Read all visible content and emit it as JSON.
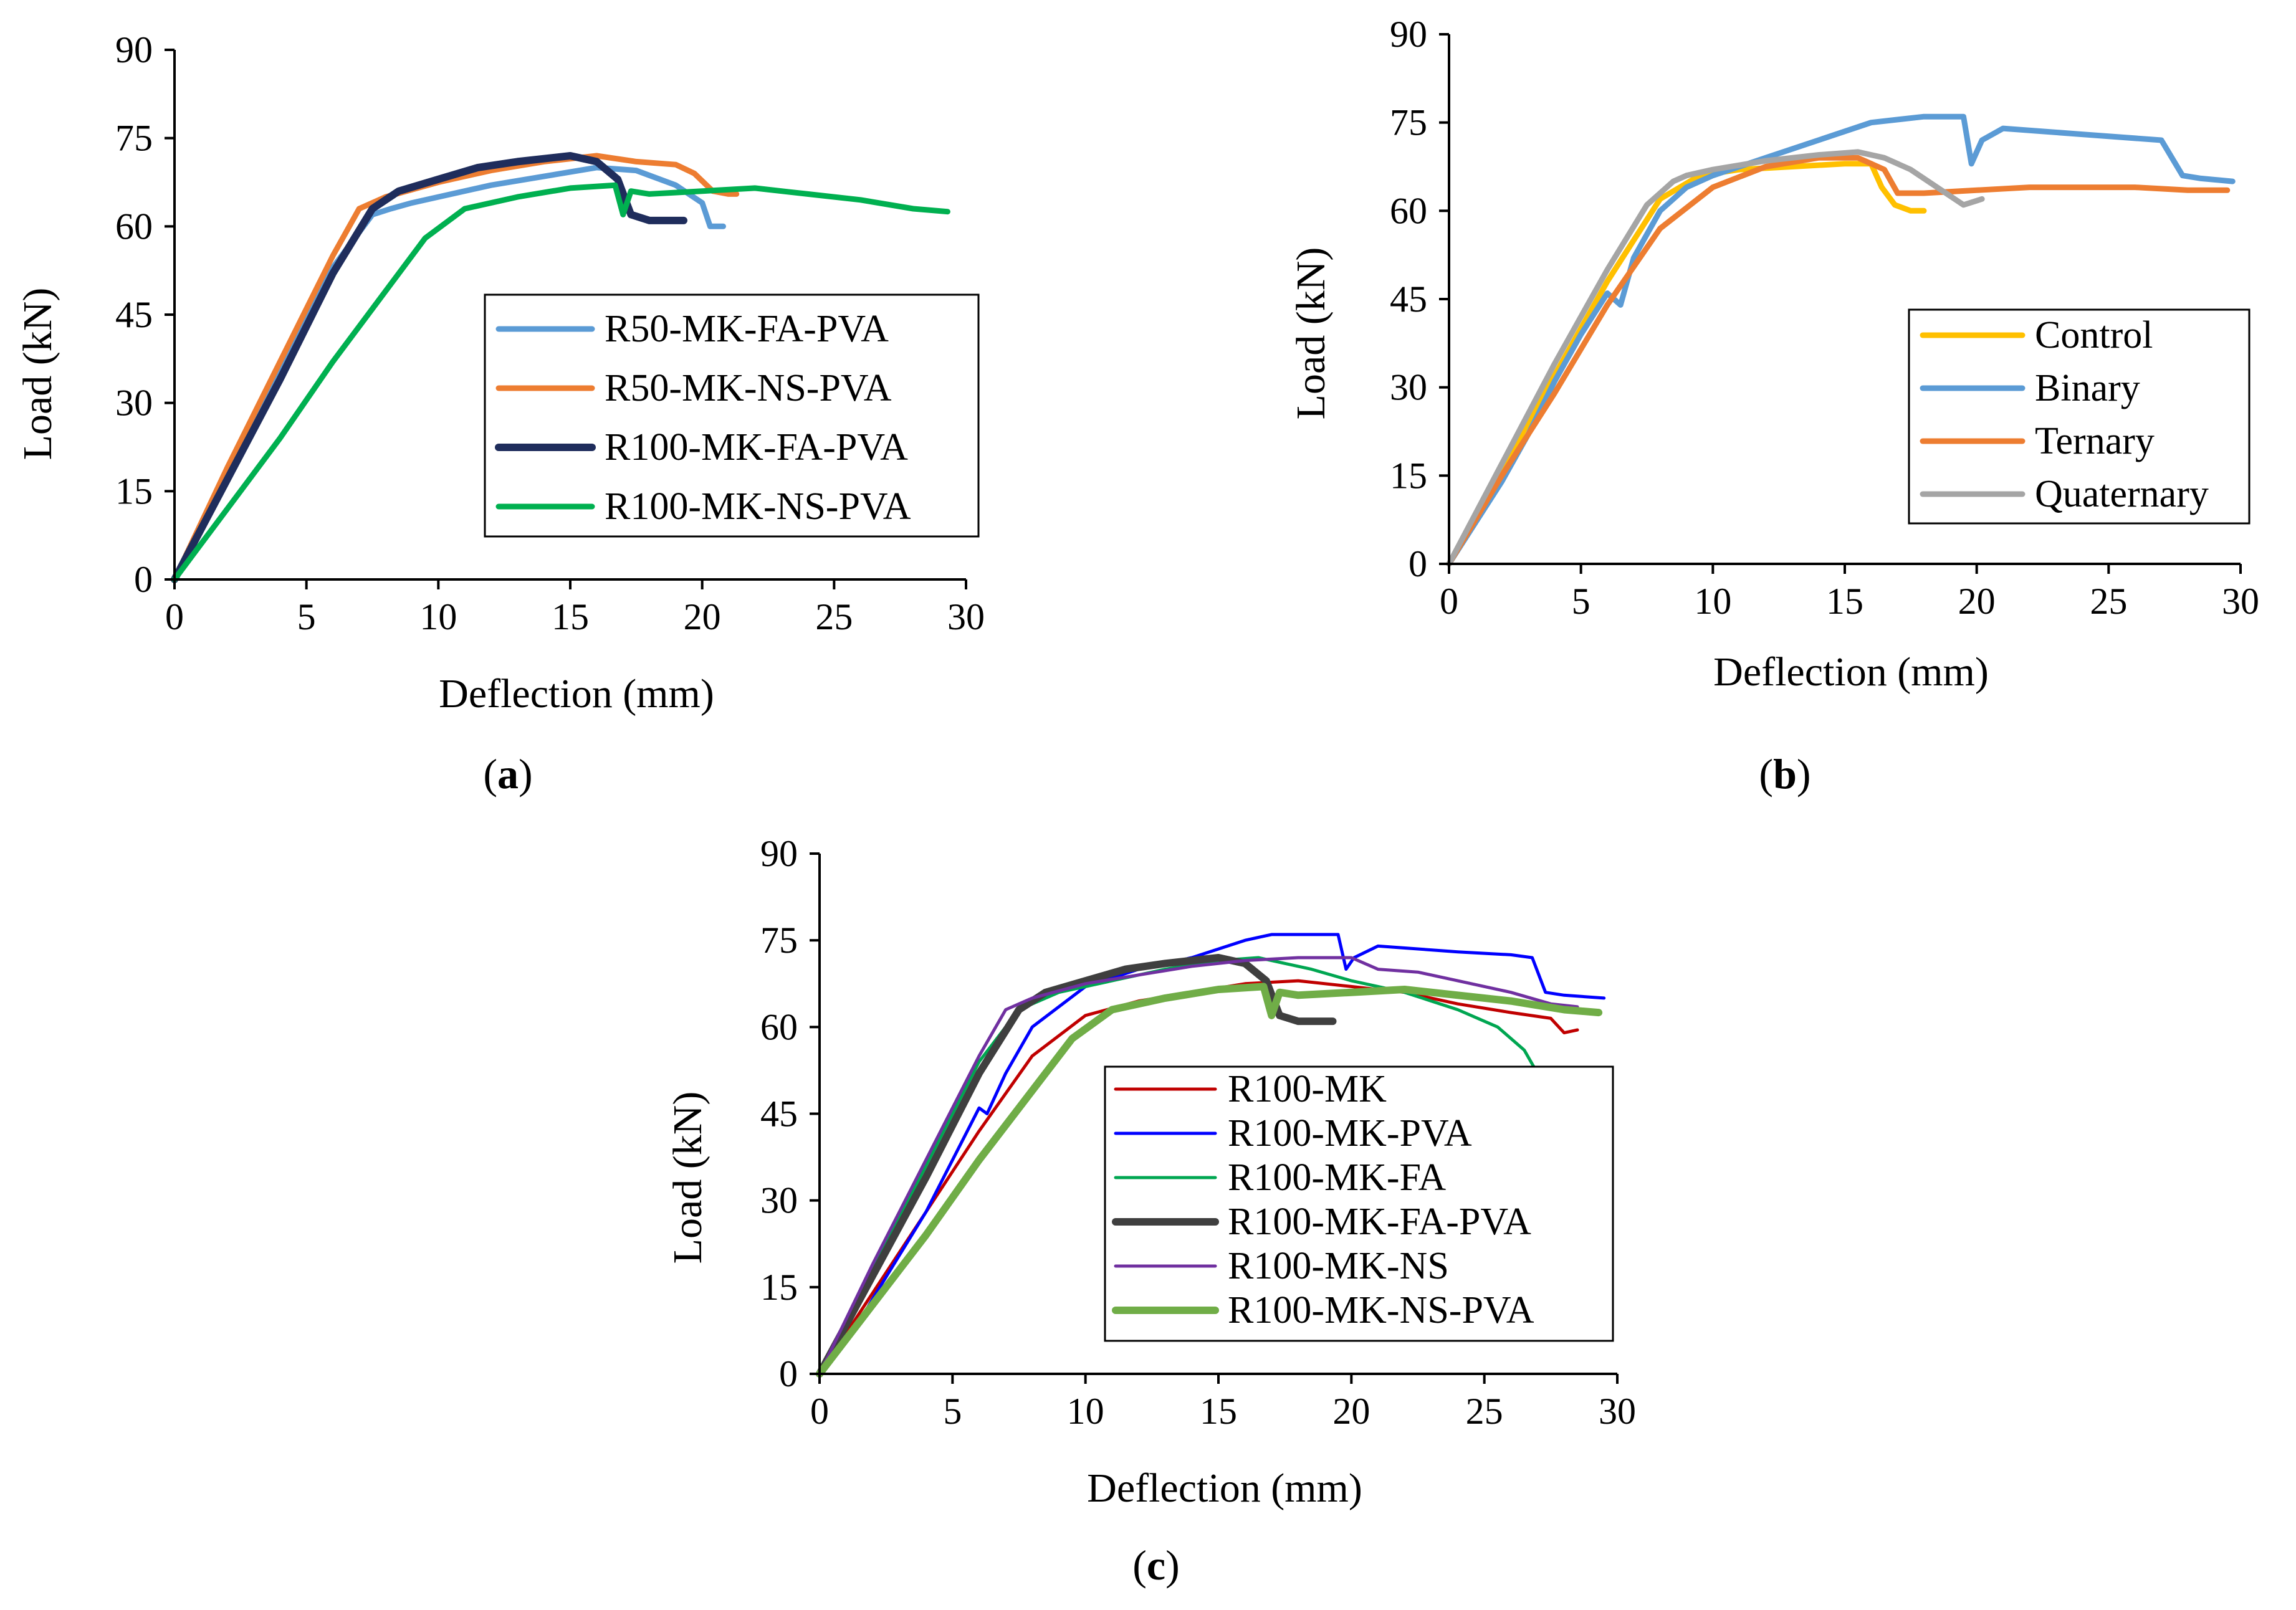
{
  "chart_data": [
    {
      "panel": "a",
      "type": "line",
      "caption": "a",
      "xlabel": "Deflection (mm)",
      "ylabel": "Load (kN)",
      "xlim": [
        0,
        30
      ],
      "ylim": [
        0,
        90
      ],
      "xticks": [
        0,
        5,
        10,
        15,
        20,
        25,
        30
      ],
      "yticks": [
        0,
        15,
        30,
        45,
        60,
        75,
        90
      ],
      "legend_position": "right-middle",
      "series": [
        {
          "name": "R50-MK-FA-PVA",
          "color": "#5B9BD5",
          "weight": "normal",
          "x": [
            0,
            2,
            4,
            6,
            7.5,
            8.2,
            9,
            10,
            12,
            14,
            16,
            17.5,
            19,
            20,
            20.3,
            20.8
          ],
          "y": [
            0,
            18,
            36,
            53,
            62,
            63,
            64,
            65,
            67,
            68.5,
            70,
            69.5,
            67,
            64,
            60,
            60
          ]
        },
        {
          "name": "R50-MK-NS-PVA",
          "color": "#ED7D31",
          "weight": "normal",
          "x": [
            0,
            2,
            4,
            6,
            7,
            8,
            10,
            12,
            14,
            16,
            17.5,
            19,
            19.7,
            20.4,
            21,
            21.3
          ],
          "y": [
            0,
            19,
            37,
            55,
            63,
            65,
            67.5,
            69.5,
            71,
            72,
            71,
            70.5,
            69,
            66,
            65.5,
            65.5
          ]
        },
        {
          "name": "R100-MK-FA-PVA",
          "color": "#1F2D5C",
          "weight": "heavy",
          "x": [
            0,
            2,
            4,
            6,
            7.5,
            8.5,
            10,
            11.5,
            13,
            15,
            16,
            16.8,
            17.3,
            18,
            19.3
          ],
          "y": [
            0,
            17,
            34,
            52,
            63,
            66,
            68,
            70,
            71,
            72,
            71,
            68,
            62,
            61,
            61
          ]
        },
        {
          "name": "R100-MK-NS-PVA",
          "color": "#00B050",
          "weight": "normal",
          "x": [
            0,
            2,
            4,
            6,
            8,
            9.5,
            11,
            13,
            15,
            16.7,
            17,
            17.3,
            18,
            20,
            22,
            24,
            26,
            28,
            29.3
          ],
          "y": [
            0,
            12,
            24,
            37,
            49,
            58,
            63,
            65,
            66.5,
            67,
            62,
            66,
            65.5,
            66,
            66.5,
            65.5,
            64.5,
            63,
            62.5
          ]
        }
      ]
    },
    {
      "panel": "b",
      "type": "line",
      "caption": "b",
      "xlabel": "Deflection (mm)",
      "ylabel": "Load (kN)",
      "xlim": [
        0,
        30
      ],
      "ylim": [
        0,
        90
      ],
      "xticks": [
        0,
        5,
        10,
        15,
        20,
        25,
        30
      ],
      "yticks": [
        0,
        15,
        30,
        45,
        60,
        75,
        90
      ],
      "legend_position": "bottom-right",
      "series": [
        {
          "name": "Control",
          "color": "#FFC000",
          "weight": "normal",
          "x": [
            0,
            2,
            4,
            6,
            8,
            9.5,
            11,
            13,
            15,
            16,
            16.4,
            16.9,
            17.5,
            18
          ],
          "y": [
            0,
            16,
            32,
            48,
            62,
            66,
            67,
            67.5,
            68,
            68,
            64,
            61,
            60,
            60
          ]
        },
        {
          "name": "Binary",
          "color": "#5B9BD5",
          "weight": "normal",
          "x": [
            0,
            1,
            2,
            3,
            4,
            5,
            6,
            6.5,
            7,
            8,
            9,
            10,
            12,
            14,
            16,
            18,
            19.5,
            19.8,
            20.2,
            21,
            24,
            27,
            27.8,
            28.5,
            29.7
          ],
          "y": [
            0,
            7,
            14,
            22,
            31,
            39,
            46,
            44,
            52,
            60,
            64,
            66,
            69,
            72,
            75,
            76,
            76,
            68,
            72,
            74,
            73,
            72,
            66,
            65.5,
            65
          ]
        },
        {
          "name": "Ternary",
          "color": "#ED7D31",
          "weight": "normal",
          "x": [
            0,
            2,
            4,
            6,
            8,
            10,
            12,
            14,
            15.5,
            16.5,
            17,
            18,
            20,
            22,
            24,
            26,
            28,
            29.5
          ],
          "y": [
            0,
            15,
            29,
            44,
            57,
            64,
            67.5,
            69,
            69,
            67,
            63,
            63,
            63.5,
            64,
            64,
            64,
            63.5,
            63.5
          ]
        },
        {
          "name": "Quaternary",
          "color": "#A5A5A5",
          "weight": "normal",
          "x": [
            0,
            2,
            4,
            6,
            7.5,
            8.5,
            9,
            10,
            12,
            14,
            15.5,
            16.5,
            17.5,
            18.5,
            19.5,
            20.2
          ],
          "y": [
            0,
            17,
            34,
            50,
            61,
            65,
            66,
            67,
            68.5,
            69.5,
            70,
            69,
            67,
            64,
            61,
            62
          ]
        }
      ]
    },
    {
      "panel": "c",
      "type": "line",
      "caption": "c",
      "xlabel": "Deflection (mm)",
      "ylabel": "Load (kN)",
      "xlim": [
        0,
        30
      ],
      "ylim": [
        0,
        90
      ],
      "xticks": [
        0,
        5,
        10,
        15,
        20,
        25,
        30
      ],
      "yticks": [
        0,
        15,
        30,
        45,
        60,
        75,
        90
      ],
      "legend_position": "bottom-right",
      "series": [
        {
          "name": "R100-MK",
          "color": "#C00000",
          "weight": "thin",
          "x": [
            0,
            2,
            4,
            6,
            8,
            10,
            12,
            14,
            16,
            18,
            20,
            22,
            24,
            26,
            27.5,
            28,
            28.5
          ],
          "y": [
            0,
            14,
            28,
            42,
            55,
            62,
            64.5,
            66,
            67.5,
            68,
            67,
            66,
            64,
            62.5,
            61.5,
            59,
            59.5
          ]
        },
        {
          "name": "R100-MK-PVA",
          "color": "#0000FF",
          "weight": "thin",
          "x": [
            0,
            1.5,
            2,
            4,
            6,
            6.3,
            7,
            8,
            10,
            12,
            14,
            16,
            17,
            19.5,
            19.8,
            20.1,
            21,
            24,
            26,
            26.8,
            27.3,
            28,
            29.5
          ],
          "y": [
            0,
            9,
            13,
            28,
            46,
            45,
            52,
            60,
            67,
            70,
            72,
            75,
            76,
            76,
            70,
            72,
            74,
            73,
            72.5,
            72,
            66,
            65.5,
            65
          ]
        },
        {
          "name": "R100-MK-FA",
          "color": "#00A651",
          "weight": "thin",
          "x": [
            0,
            2,
            4,
            6,
            7.5,
            9,
            11,
            13,
            15,
            16.5,
            17.5,
            18.5,
            20,
            22,
            24,
            25.5,
            26.5,
            27
          ],
          "y": [
            0,
            18,
            36,
            54,
            63,
            66,
            68,
            70,
            71.5,
            72,
            71,
            70,
            68,
            66,
            63,
            60,
            56,
            52
          ]
        },
        {
          "name": "R100-MK-FA-PVA",
          "color": "#3F3F3F",
          "weight": "heavy",
          "x": [
            0,
            2,
            4,
            6,
            7.5,
            8.5,
            10,
            11.5,
            13,
            15,
            16,
            16.8,
            17.3,
            18,
            19.3
          ],
          "y": [
            0,
            17,
            34,
            52,
            63,
            66,
            68,
            70,
            71,
            72,
            71,
            68,
            62,
            61,
            61
          ]
        },
        {
          "name": "R100-MK-NS",
          "color": "#7030A0",
          "weight": "thin",
          "x": [
            0,
            2,
            4,
            6,
            7,
            8,
            10,
            12,
            14,
            16,
            18,
            20,
            21,
            22.5,
            24,
            26,
            27.5,
            28.5
          ],
          "y": [
            0,
            19,
            37,
            55,
            63,
            65,
            67.5,
            69,
            70.5,
            71.5,
            72,
            72,
            70,
            69.5,
            68,
            66,
            64,
            63.5
          ]
        },
        {
          "name": "R100-MK-NS-PVA",
          "color": "#70AD47",
          "weight": "heavy",
          "x": [
            0,
            2,
            4,
            6,
            8,
            9.5,
            11,
            13,
            15,
            16.7,
            17,
            17.3,
            18,
            20,
            22,
            24,
            26,
            28,
            29.3
          ],
          "y": [
            0,
            12,
            24,
            37,
            49,
            58,
            63,
            65,
            66.5,
            67,
            62,
            66,
            65.5,
            66,
            66.5,
            65.5,
            64.5,
            63,
            62.5
          ]
        }
      ]
    }
  ]
}
